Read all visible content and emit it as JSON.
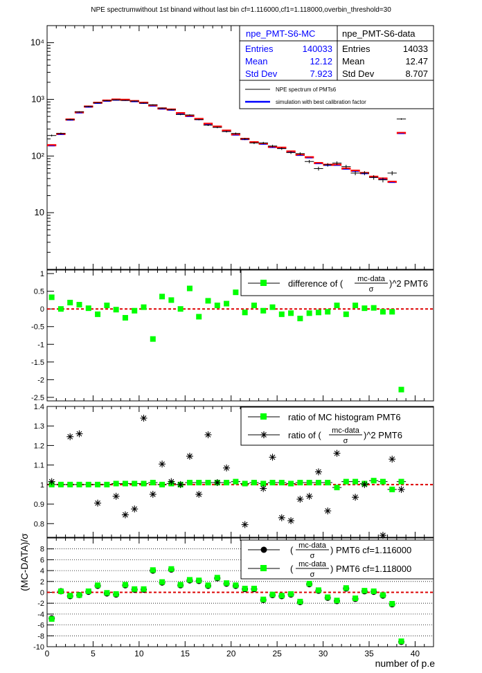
{
  "title": "NPE spectrumwithout 1st binand without last bin cf=1.116000,cf1=1.118000,overbin_threshold=30",
  "xlabel": "number of p.e",
  "ylabel_bottom": "(MC-DATA)/σ",
  "xticks": [
    "0",
    "5",
    "10",
    "15",
    "20",
    "25",
    "30",
    "35",
    "40"
  ],
  "stats_mc": {
    "name": "npe_PMT-S6-MC",
    "rows": [
      [
        "Entries",
        "140033"
      ],
      [
        "Mean",
        "12.12"
      ],
      [
        "Std Dev",
        "7.923"
      ]
    ]
  },
  "stats_data": {
    "name": "npe_PMT-S6-data",
    "rows": [
      [
        "Entries",
        "14033"
      ],
      [
        "Mean",
        "12.47"
      ],
      [
        "Std Dev",
        "8.707"
      ]
    ]
  },
  "legend1": [
    "NPE spectrum of PMTs6",
    "simulation with best calibration factor"
  ],
  "legend2": {
    "prefix": "difference of (",
    "frac_num": "mc-data",
    "frac_den": "σ",
    "suffix": ")^2 PMT6"
  },
  "legend3": {
    "item1": "ratio of MC histogram  PMT6",
    "item2_prefix": "ratio of (",
    "frac_num": "mc-data",
    "frac_den": "σ",
    "item2_suffix": ")^2 PMT6"
  },
  "legend4": {
    "frac_num": "mc-data",
    "frac_den": "σ",
    "item1_suffix": "PMT6 cf=1.116000",
    "item2_suffix": "PMT6 cf=1.118000"
  },
  "colors": {
    "data": "#000000",
    "mc": "#ff0000",
    "mc_line": "#0000ff",
    "green": "#00ff00",
    "ref": "#dd0000",
    "stats_title": "#0000ff"
  },
  "chart_data": [
    {
      "type": "line",
      "title": "NPE spectrum",
      "yscale": "log",
      "ylim": [
        1,
        20000
      ],
      "xlim": [
        0,
        42
      ],
      "yticks": [
        "10",
        "10²",
        "10³",
        "10⁴"
      ],
      "x": [
        0.5,
        1.5,
        2.5,
        3.5,
        4.5,
        5.5,
        6.5,
        7.5,
        8.5,
        9.5,
        10.5,
        11.5,
        12.5,
        13.5,
        14.5,
        15.5,
        16.5,
        17.5,
        18.5,
        19.5,
        20.5,
        21.5,
        22.5,
        23.5,
        24.5,
        25.5,
        26.5,
        27.5,
        28.5,
        29.5,
        30.5,
        31.5,
        32.5,
        33.5,
        34.5,
        35.5,
        36.5,
        37.5,
        38.5
      ],
      "series": [
        {
          "name": "NPE spectrum of PMTs6",
          "values": [
            230,
            250,
            440,
            600,
            750,
            870,
            950,
            980,
            960,
            930,
            860,
            800,
            700,
            660,
            540,
            530,
            440,
            350,
            320,
            270,
            250,
            200,
            170,
            170,
            150,
            135,
            115,
            110,
            80,
            60,
            70,
            75,
            65,
            50,
            50,
            42,
            38,
            50,
            450
          ]
        },
        {
          "name": "simulation with best calibration factor",
          "values": [
            155,
            245,
            440,
            590,
            745,
            870,
            950,
            990,
            980,
            930,
            870,
            780,
            690,
            660,
            570,
            510,
            450,
            370,
            330,
            280,
            240,
            200,
            175,
            165,
            145,
            140,
            120,
            105,
            95,
            75,
            70,
            70,
            60,
            55,
            50,
            43,
            40,
            35,
            255
          ]
        }
      ]
    },
    {
      "type": "scatter",
      "title": "difference",
      "ylim": [
        -2.6,
        1.1
      ],
      "yticks": [
        "-2.5",
        "-2",
        "-1.5",
        "-1",
        "-0.5",
        "0",
        "0.5",
        "1"
      ],
      "x": [
        0.5,
        1.5,
        2.5,
        3.5,
        4.5,
        5.5,
        6.5,
        7.5,
        8.5,
        9.5,
        10.5,
        11.5,
        12.5,
        13.5,
        14.5,
        15.5,
        16.5,
        17.5,
        18.5,
        19.5,
        20.5,
        21.5,
        22.5,
        23.5,
        24.5,
        25.5,
        26.5,
        27.5,
        28.5,
        29.5,
        30.5,
        31.5,
        32.5,
        33.5,
        34.5,
        35.5,
        36.5,
        37.5,
        38.5
      ],
      "series": [
        {
          "name": "difference of (mc-data/σ)^2 PMT6",
          "values": [
            0.33,
            0.0,
            0.18,
            0.12,
            0.02,
            -0.15,
            0.1,
            -0.02,
            -0.25,
            -0.05,
            0.05,
            -0.85,
            0.35,
            0.25,
            0.0,
            0.58,
            -0.22,
            0.23,
            0.1,
            0.15,
            0.47,
            -0.1,
            0.1,
            -0.05,
            0.05,
            -0.15,
            -0.12,
            -0.27,
            -0.12,
            -0.1,
            -0.08,
            0.1,
            -0.15,
            0.1,
            0.02,
            0.03,
            -0.08,
            -0.08,
            -2.28
          ]
        }
      ]
    },
    {
      "type": "scatter",
      "title": "ratio",
      "ylim": [
        0.73,
        1.4
      ],
      "yticks": [
        "0.8",
        "0.9",
        "1",
        "1.1",
        "1.2",
        "1.3",
        "1.4"
      ],
      "x": [
        0.5,
        1.5,
        2.5,
        3.5,
        4.5,
        5.5,
        6.5,
        7.5,
        8.5,
        9.5,
        10.5,
        11.5,
        12.5,
        13.5,
        14.5,
        15.5,
        16.5,
        17.5,
        18.5,
        19.5,
        20.5,
        21.5,
        22.5,
        23.5,
        24.5,
        25.5,
        26.5,
        27.5,
        28.5,
        29.5,
        30.5,
        31.5,
        32.5,
        33.5,
        34.5,
        35.5,
        36.5,
        37.5,
        38.5
      ],
      "series": [
        {
          "name": "ratio of MC histogram  PMT6",
          "values": [
            1.0,
            1.0,
            1.0,
            1.0,
            1.0,
            1.0,
            1.0,
            1.005,
            1.005,
            1.005,
            1.005,
            1.01,
            1.0,
            1.005,
            1.0,
            1.01,
            1.01,
            1.01,
            1.01,
            1.01,
            1.015,
            1.005,
            1.01,
            1.005,
            1.01,
            1.01,
            1.005,
            1.01,
            1.01,
            1.01,
            1.01,
            0.985,
            1.015,
            1.015,
            1.005,
            1.02,
            1.015,
            0.975,
            1.015
          ]
        },
        {
          "name": "ratio of (mc-data/σ)^2 PMT6",
          "values": [
            1.015,
            null,
            1.245,
            1.26,
            null,
            0.905,
            null,
            0.94,
            0.845,
            0.875,
            1.34,
            0.95,
            1.105,
            1.015,
            1.0,
            1.145,
            0.95,
            1.255,
            1.01,
            1.085,
            null,
            0.795,
            null,
            0.98,
            1.14,
            0.83,
            0.815,
            0.925,
            0.94,
            1.065,
            0.865,
            1.16,
            null,
            0.935,
            1.0,
            null,
            0.74,
            1.13,
            0.975
          ]
        }
      ]
    },
    {
      "type": "scatter",
      "title": "pull",
      "ylim": [
        -10,
        10
      ],
      "yticks": [
        "-10",
        "-8",
        "-6",
        "-4",
        "-2",
        "0",
        "2",
        "4",
        "6",
        "8"
      ],
      "x": [
        0.5,
        1.5,
        2.5,
        3.5,
        4.5,
        5.5,
        6.5,
        7.5,
        8.5,
        9.5,
        10.5,
        11.5,
        12.5,
        13.5,
        14.5,
        15.5,
        16.5,
        17.5,
        18.5,
        19.5,
        20.5,
        21.5,
        22.5,
        23.5,
        24.5,
        25.5,
        26.5,
        27.5,
        28.5,
        29.5,
        30.5,
        31.5,
        32.5,
        33.5,
        34.5,
        35.5,
        36.5,
        37.5,
        38.5
      ],
      "series": [
        {
          "name": "PMT6 cf=1.116000",
          "values": [
            -4.8,
            0.2,
            -0.7,
            -0.5,
            0.1,
            1.2,
            -0.2,
            -0.4,
            1.3,
            0.5,
            0.5,
            4.0,
            1.8,
            4.2,
            1.3,
            2.2,
            2.1,
            1.2,
            2.6,
            1.6,
            1.2,
            0.6,
            0.6,
            -1.4,
            -0.5,
            -0.7,
            -0.4,
            -1.8,
            1.5,
            0.3,
            -1.0,
            -1.6,
            0.7,
            -1.2,
            0.2,
            0.1,
            -0.6,
            -2.2,
            -9.1
          ]
        },
        {
          "name": "PMT6 cf=1.118000",
          "values": [
            -4.9,
            0.2,
            -0.6,
            -0.5,
            0.2,
            1.3,
            -0.1,
            -0.3,
            1.4,
            0.6,
            0.6,
            4.1,
            1.9,
            4.3,
            1.4,
            2.3,
            2.2,
            1.3,
            2.7,
            1.7,
            1.3,
            0.7,
            0.7,
            -1.3,
            -0.4,
            -0.6,
            -0.3,
            -1.7,
            1.6,
            0.4,
            -0.9,
            -1.5,
            0.8,
            -1.1,
            0.3,
            0.2,
            -0.5,
            -2.1,
            -9.0
          ]
        }
      ]
    }
  ]
}
